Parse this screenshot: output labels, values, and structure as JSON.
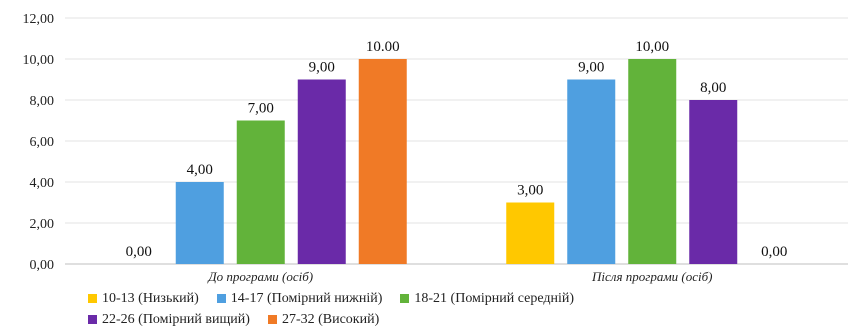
{
  "chart_data": {
    "type": "bar",
    "categories": [
      "До програми (осіб)",
      "Після програми (осіб)"
    ],
    "series": [
      {
        "name": "10-13 (Низький)",
        "color": "#FFC800",
        "values": [
          0,
          3
        ]
      },
      {
        "name": "14-17 (Помірний нижній)",
        "color": "#4F9FE0",
        "values": [
          4,
          9
        ]
      },
      {
        "name": "18-21 (Помірний середній)",
        "color": "#62B33A",
        "values": [
          7,
          10
        ]
      },
      {
        "name": "22-26 (Помірний вищий)",
        "color": "#6A2AA8",
        "values": [
          9,
          8
        ]
      },
      {
        "name": "27-32 (Високий)",
        "color": "#F07A26",
        "values": [
          10,
          0
        ]
      }
    ],
    "ylim": [
      0,
      12
    ],
    "yticks": [
      "0,00",
      "2,00",
      "4,00",
      "6,00",
      "8,00",
      "10,00",
      "12,00"
    ],
    "data_labels": [
      [
        "0,00",
        "3,00"
      ],
      [
        "4,00",
        "9,00"
      ],
      [
        "7,00",
        "10,00"
      ],
      [
        "9,00",
        "8,00"
      ],
      [
        "10.00",
        "0,00"
      ]
    ],
    "gridlines": true,
    "legend_position": "bottom"
  }
}
